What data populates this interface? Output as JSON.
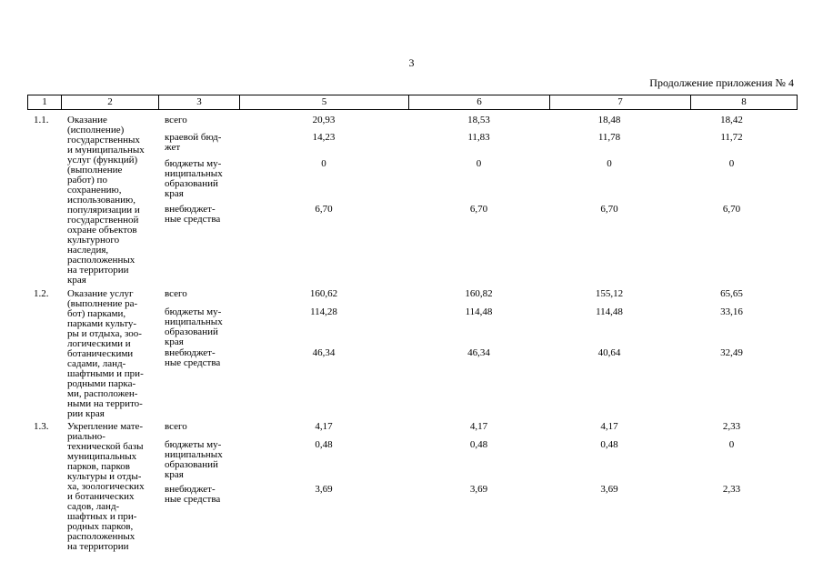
{
  "page_number": "3",
  "appendix_note": "Продолжение приложения № 4",
  "columns": [
    "1",
    "2",
    "3",
    "5",
    "6",
    "7",
    "8"
  ],
  "rows": [
    {
      "num": "1.1.",
      "name": "Оказание\n(исполнение)\nгосударственных\nи муниципальных\nуслуг (функций)\n(выполнение\nработ) по\nсохранению,\nиспользованию,\nпопуляризации и\nгосударственной\nохране объектов\nкультурного\nнаследия,\nрасположенных\nна территории\nкрая",
      "sources": [
        {
          "label": "всего",
          "values": [
            "20,93",
            "18,53",
            "18,48",
            "18,42"
          ]
        },
        {
          "label": "краевой бюд-\nжет",
          "values": [
            "14,23",
            "11,83",
            "11,78",
            "11,72"
          ]
        },
        {
          "label": "бюджеты му-\nниципальных\nобразований\nкрая",
          "values": [
            "0",
            "0",
            "0",
            "0"
          ]
        },
        {
          "label": "внебюджет-\nные средства",
          "values": [
            "6,70",
            "6,70",
            "6,70",
            "6,70"
          ]
        }
      ]
    },
    {
      "num": "1.2.",
      "name": "Оказание услуг\n(выполнение ра-\nбот) парками,\nпарками культу-\nры и отдыха, зоо-\nлогическими и\nботаническими\nсадами, ланд-\nшафтными и при-\nродными парка-\nми, расположен-\nными на террито-\nрии края",
      "sources": [
        {
          "label": "всего",
          "values": [
            "160,62",
            "160,82",
            "155,12",
            "65,65"
          ]
        },
        {
          "label": "бюджеты му-\nниципальных\nобразований\nкрая",
          "values": [
            "114,28",
            "114,48",
            "114,48",
            "33,16"
          ]
        },
        {
          "label": "внебюджет-\nные средства",
          "values": [
            "46,34",
            "46,34",
            "40,64",
            "32,49"
          ]
        }
      ]
    },
    {
      "num": "1.3.",
      "name": "Укрепление мате-\nриально-\nтехнической базы\nмуниципальных\nпарков, парков\nкультуры и отды-\nха, зоологических\nи ботанических\nсадов, ланд-\nшафтных и при-\nродных парков,\nрасположенных\nна территории",
      "sources": [
        {
          "label": "всего",
          "values": [
            "4,17",
            "4,17",
            "4,17",
            "2,33"
          ]
        },
        {
          "label": "бюджеты му-\nниципальных\nобразований\nкрая",
          "values": [
            "0,48",
            "0,48",
            "0,48",
            "0"
          ]
        },
        {
          "label": "внебюджет-\nные средства",
          "values": [
            "3,69",
            "3,69",
            "3,69",
            "2,33"
          ]
        }
      ]
    }
  ]
}
